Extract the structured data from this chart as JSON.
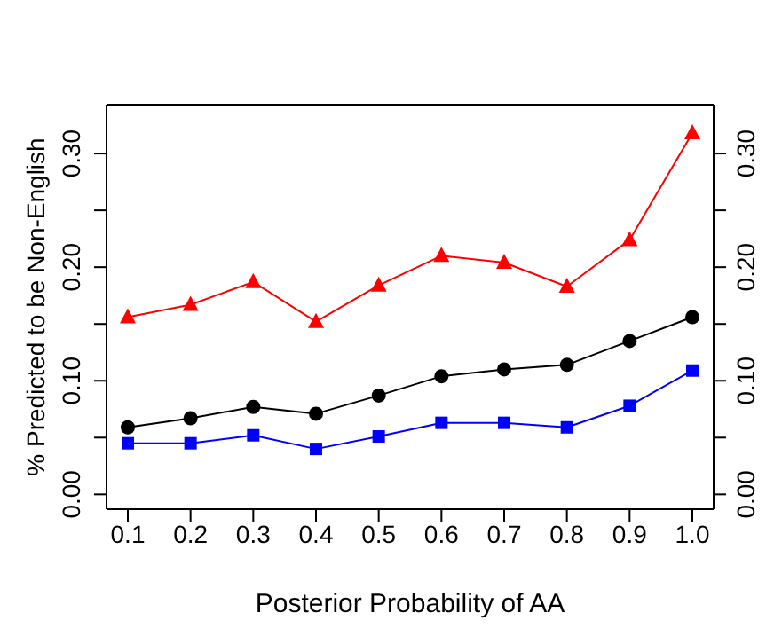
{
  "chart_data": {
    "type": "line",
    "xlabel": "Posterior Probability of AA",
    "ylabel": "% Predicted to be Non-English",
    "categories": [
      "0.1",
      "0.2",
      "0.3",
      "0.4",
      "0.5",
      "0.6",
      "0.7",
      "0.8",
      "0.9",
      "1.0"
    ],
    "series": [
      {
        "color": "#000000",
        "marker": "circle",
        "values": [
          0.059,
          0.067,
          0.077,
          0.071,
          0.087,
          0.104,
          0.11,
          0.114,
          0.135,
          0.156
        ]
      },
      {
        "color": "#0000ff",
        "marker": "square",
        "values": [
          0.045,
          0.045,
          0.052,
          0.04,
          0.051,
          0.063,
          0.063,
          0.059,
          0.078,
          0.109
        ]
      },
      {
        "color": "#ff0000",
        "marker": "triangle",
        "values": [
          0.156,
          0.167,
          0.187,
          0.152,
          0.184,
          0.21,
          0.204,
          0.183,
          0.224,
          0.318
        ]
      }
    ],
    "ylim": [
      -0.013,
      0.343
    ],
    "yticks": [
      {
        "value": 0,
        "label": "0.00"
      },
      {
        "value": 0.05,
        "label": null
      },
      {
        "value": 0.1,
        "label": "0.10"
      },
      {
        "value": 0.15,
        "label": null
      },
      {
        "value": 0.2,
        "label": "0.20"
      },
      {
        "value": 0.25,
        "label": null
      },
      {
        "value": 0.3,
        "label": "0.30"
      }
    ],
    "y2lim": [
      -0.013,
      0.343
    ],
    "y2ticks": [
      {
        "value": 0,
        "label": "0.00"
      },
      {
        "value": 0.05,
        "label": null
      },
      {
        "value": 0.1,
        "label": "0.10"
      },
      {
        "value": 0.15,
        "label": null
      },
      {
        "value": 0.2,
        "label": "0.20"
      },
      {
        "value": 0.25,
        "label": null
      },
      {
        "value": 0.3,
        "label": "0.30"
      }
    ],
    "grid": false,
    "legend": false
  }
}
